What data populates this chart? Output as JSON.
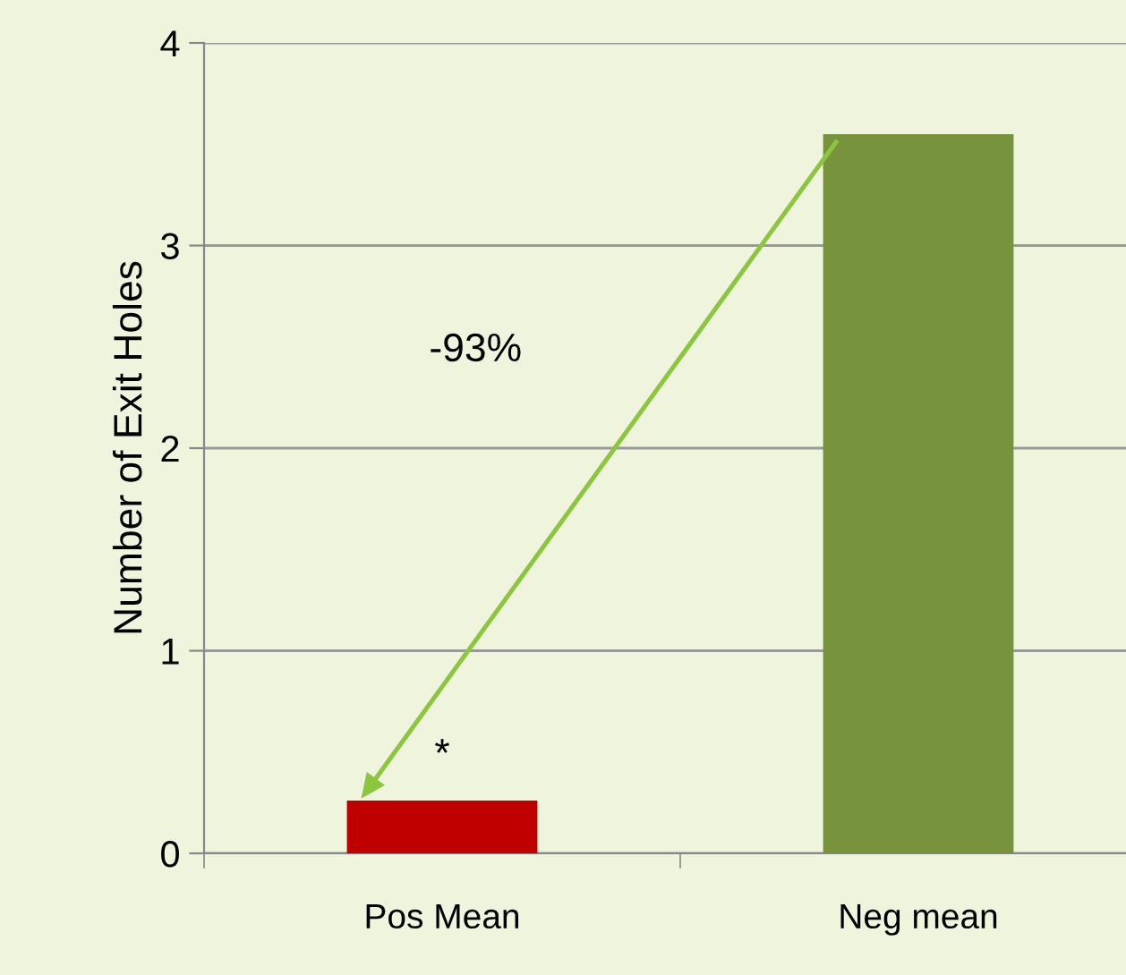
{
  "chart_data": {
    "type": "bar",
    "ylabel": "Number of Exit Holes",
    "categories": [
      "Pos Mean",
      "Neg mean"
    ],
    "values": [
      0.26,
      3.55
    ],
    "colors": [
      "#c00000",
      "#77933c"
    ],
    "ylim": [
      0,
      4
    ],
    "yticks": [
      0,
      1,
      2,
      3,
      4
    ],
    "grid": "y",
    "annotations": [
      "-93%",
      "*"
    ]
  }
}
